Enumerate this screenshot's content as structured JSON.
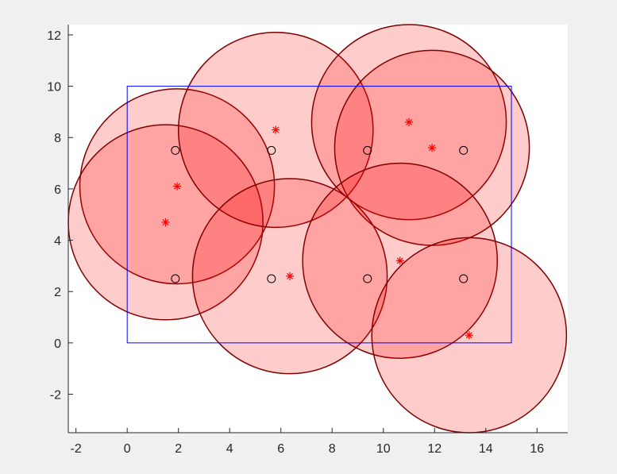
{
  "chart_data": {
    "type": "scatter",
    "title": "",
    "xlabel": "",
    "ylabel": "",
    "xlim": [
      -2.3,
      17.2
    ],
    "ylim": [
      -3.5,
      12.4
    ],
    "xticks": [
      -2,
      0,
      2,
      4,
      6,
      8,
      10,
      12,
      14,
      16
    ],
    "yticks": [
      -2,
      0,
      2,
      4,
      6,
      8,
      10,
      12
    ],
    "grid": false,
    "boundary": {
      "x0": 0,
      "y0": 0,
      "x1": 15,
      "y1": 10,
      "color": "#0000ff"
    },
    "colors": {
      "circle_fill": "#ff0000",
      "circle_fill_opacity": 0.2,
      "circle_edge": "#800000",
      "star": "#ff0000",
      "marker": "#000000",
      "axes_bg": "#ffffff",
      "figure_bg": "#f0f0f0"
    },
    "grid_points": [
      {
        "x": 1.88,
        "y": 7.5
      },
      {
        "x": 5.63,
        "y": 7.5
      },
      {
        "x": 9.38,
        "y": 7.5
      },
      {
        "x": 13.13,
        "y": 7.5
      },
      {
        "x": 1.88,
        "y": 2.5
      },
      {
        "x": 5.63,
        "y": 2.5
      },
      {
        "x": 9.38,
        "y": 2.5
      },
      {
        "x": 13.13,
        "y": 2.5
      }
    ],
    "circles": [
      {
        "cx": 1.95,
        "cy": 6.1,
        "r": 3.8
      },
      {
        "cx": 1.5,
        "cy": 4.7,
        "r": 3.8
      },
      {
        "cx": 5.8,
        "cy": 8.3,
        "r": 3.8
      },
      {
        "cx": 11.0,
        "cy": 8.6,
        "r": 3.8
      },
      {
        "cx": 11.9,
        "cy": 7.6,
        "r": 3.8
      },
      {
        "cx": 6.35,
        "cy": 2.6,
        "r": 3.8
      },
      {
        "cx": 10.65,
        "cy": 3.2,
        "r": 3.8
      },
      {
        "cx": 13.35,
        "cy": 0.3,
        "r": 3.8
      }
    ]
  }
}
